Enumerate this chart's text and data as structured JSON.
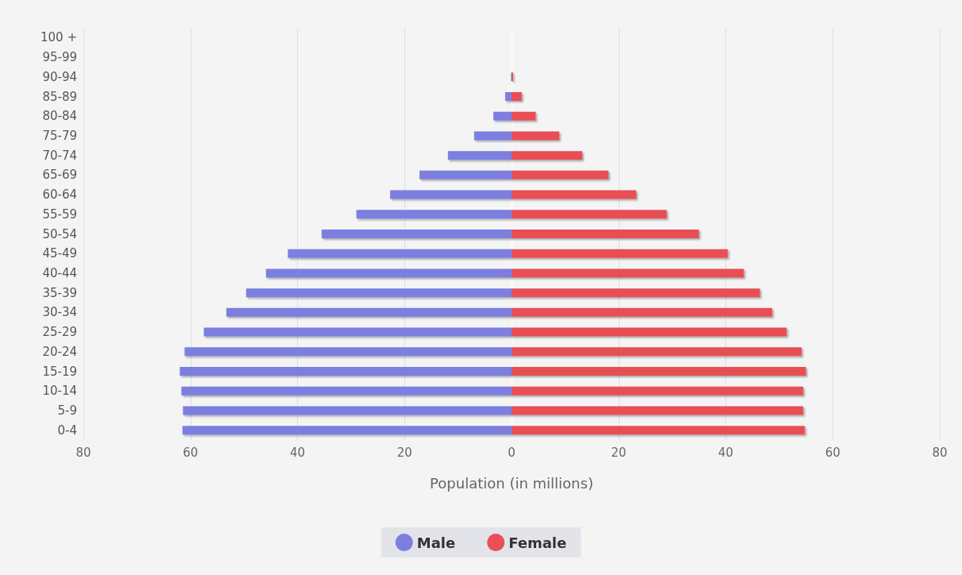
{
  "chart_data": {
    "type": "bar",
    "orientation": "horizontal",
    "stacked": true,
    "xlabel": "Population (in millions)",
    "categories": [
      "100 +",
      "95-99",
      "90-94",
      "85-89",
      "80-84",
      "75-79",
      "70-74",
      "65-69",
      "60-64",
      "55-59",
      "50-54",
      "45-49",
      "40-44",
      "35-39",
      "30-34",
      "25-29",
      "20-24",
      "15-19",
      "10-14",
      "5-9",
      "0-4"
    ],
    "series": [
      {
        "name": "Male",
        "color": "#7b7fe0",
        "values": [
          0,
          0,
          -0.1,
          -1.2,
          -3.4,
          -7.0,
          -11.9,
          -17.2,
          -22.7,
          -29.0,
          -35.5,
          -41.8,
          -45.9,
          -49.6,
          -53.3,
          -57.5,
          -61.1,
          -62.0,
          -61.7,
          -61.4,
          -61.5
        ]
      },
      {
        "name": "Female",
        "color": "#e85055",
        "values": [
          0,
          0,
          0.3,
          1.9,
          4.5,
          8.9,
          13.2,
          18.1,
          23.3,
          29.0,
          35.0,
          40.4,
          43.4,
          46.4,
          48.7,
          51.4,
          54.2,
          55.0,
          54.5,
          54.5,
          54.8
        ]
      }
    ],
    "xlim": [
      -80,
      80
    ],
    "xticks": [
      {
        "value": -80,
        "label": "80"
      },
      {
        "value": -60,
        "label": "60"
      },
      {
        "value": -40,
        "label": "40"
      },
      {
        "value": -20,
        "label": "20"
      },
      0,
      20,
      40,
      60,
      80
    ],
    "grid": "x",
    "legend": "bottom"
  }
}
